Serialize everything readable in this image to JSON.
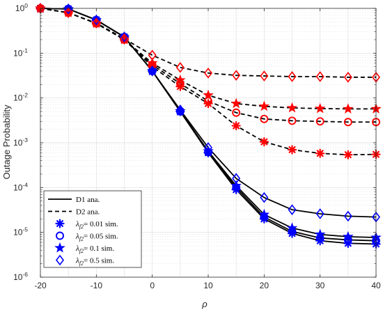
{
  "chart_data": {
    "type": "line",
    "xlabel": "ρ",
    "ylabel": "Outage Probability",
    "xlim": [
      -20,
      40
    ],
    "ylim_log10": [
      -6,
      0
    ],
    "yscale": "log",
    "grid": true,
    "x_ticks": [
      "-20",
      "-10",
      "0",
      "10",
      "20",
      "30",
      "40"
    ],
    "y_ticks": [
      {
        "base": "10",
        "exp": "-6"
      },
      {
        "base": "10",
        "exp": "-5"
      },
      {
        "base": "10",
        "exp": "-4"
      },
      {
        "base": "10",
        "exp": "-3"
      },
      {
        "base": "10",
        "exp": "-2"
      },
      {
        "base": "10",
        "exp": "-1"
      },
      {
        "base": "10",
        "exp": "0"
      }
    ],
    "x": [
      -20,
      -15,
      -10,
      -5,
      0,
      5,
      10,
      15,
      20,
      25,
      30,
      35,
      40
    ],
    "groups": [
      {
        "lambda_label": "0.01",
        "d1": [
          1.0,
          0.97,
          0.55,
          0.23,
          0.04,
          0.005,
          0.0006,
          9e-05,
          2e-05,
          9.5e-06,
          6.5e-06,
          5.7e-06,
          5.5e-06
        ],
        "d2": [
          1.0,
          0.8,
          0.46,
          0.2,
          0.05,
          0.018,
          0.0075,
          0.0024,
          0.00105,
          0.0007,
          0.00058,
          0.00054,
          0.00055
        ]
      },
      {
        "lambda_label": "0.05",
        "d1": [
          1.0,
          0.97,
          0.55,
          0.23,
          0.04,
          0.005,
          0.00062,
          0.0001,
          2.2e-05,
          1.05e-05,
          7.5e-06,
          6.8e-06,
          6.5e-06
        ],
        "d2": [
          1.0,
          0.8,
          0.46,
          0.2,
          0.055,
          0.021,
          0.0085,
          0.0047,
          0.0034,
          0.0031,
          0.003,
          0.0029,
          0.0029
        ]
      },
      {
        "lambda_label": "0.1",
        "d1": [
          1.0,
          0.97,
          0.55,
          0.23,
          0.04,
          0.0051,
          0.00065,
          0.00011,
          2.5e-05,
          1.25e-05,
          9e-06,
          8e-06,
          7.7e-06
        ],
        "d2": [
          1.0,
          0.8,
          0.46,
          0.2,
          0.06,
          0.025,
          0.0115,
          0.0075,
          0.0065,
          0.006,
          0.0058,
          0.0057,
          0.0057
        ]
      },
      {
        "lambda_label": "0.5",
        "d1": [
          1.0,
          0.97,
          0.55,
          0.23,
          0.04,
          0.0054,
          0.00078,
          0.00016,
          6e-05,
          3.2e-05,
          2.6e-05,
          2.3e-05,
          2.2e-05
        ],
        "d2": [
          1.0,
          0.8,
          0.47,
          0.21,
          0.09,
          0.048,
          0.036,
          0.032,
          0.031,
          0.03,
          0.03,
          0.029,
          0.029
        ]
      }
    ],
    "legend_position": "bottom-left",
    "legend": {
      "d1": "D1 ana.",
      "d2": "D2 ana.",
      "sim_prefix": "λ",
      "sim_sub": "f2",
      "sim_mid": "= ",
      "sim_suffix": " sim."
    },
    "colors": {
      "line": "#000000",
      "d1_marker": "#0000ff",
      "d2_marker": "#ff0000",
      "grid": "#dcdcdc",
      "axis": "#262626"
    },
    "markers": [
      "asterisk",
      "circle",
      "pentagram",
      "diamond"
    ]
  }
}
